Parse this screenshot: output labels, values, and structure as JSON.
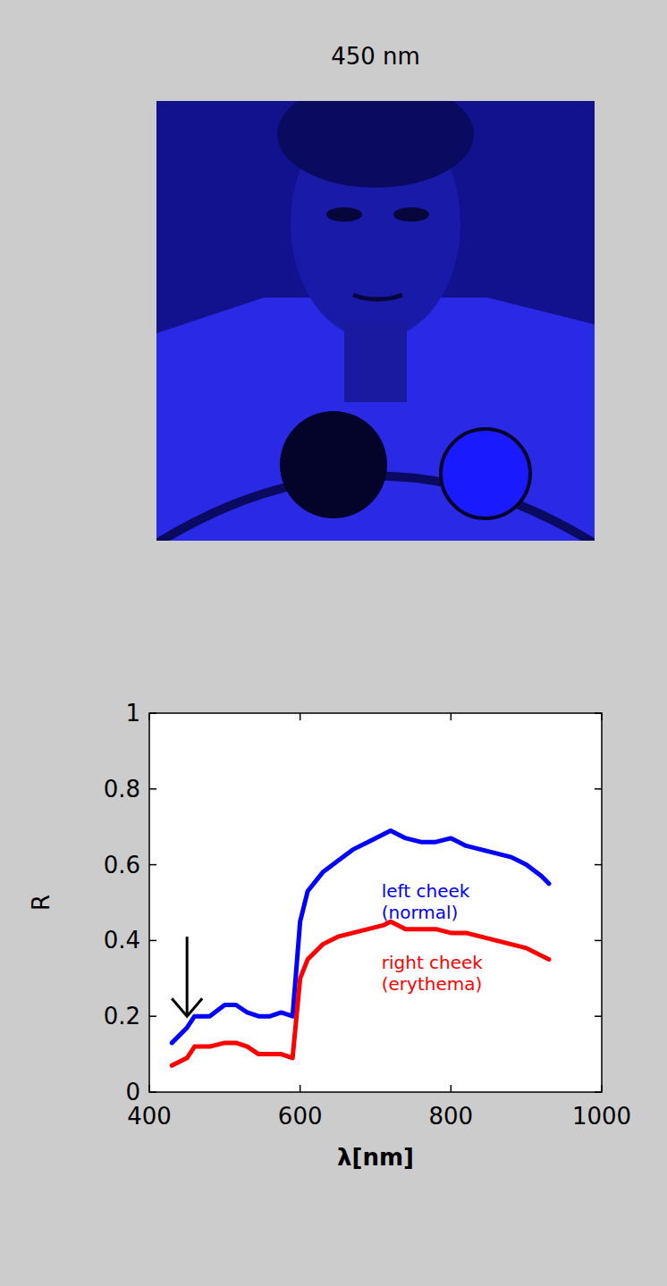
{
  "image": {
    "title": "450 nm"
  },
  "chart_data": {
    "type": "line",
    "xlabel": "λ[nm]",
    "ylabel": "R",
    "x": [
      430,
      450,
      460,
      480,
      500,
      515,
      530,
      545,
      560,
      575,
      590,
      600,
      610,
      630,
      650,
      670,
      690,
      710,
      720,
      740,
      760,
      780,
      800,
      820,
      840,
      860,
      880,
      900,
      920,
      930
    ],
    "series": [
      {
        "name": "left cheek (normal)",
        "color": "#0000ff",
        "values": [
          0.13,
          0.17,
          0.2,
          0.2,
          0.23,
          0.23,
          0.21,
          0.2,
          0.2,
          0.21,
          0.2,
          0.45,
          0.53,
          0.58,
          0.61,
          0.64,
          0.66,
          0.68,
          0.69,
          0.67,
          0.66,
          0.66,
          0.67,
          0.65,
          0.64,
          0.63,
          0.62,
          0.6,
          0.57,
          0.55
        ]
      },
      {
        "name": "right cheek (erythema)",
        "color": "#ff0000",
        "values": [
          0.07,
          0.09,
          0.12,
          0.12,
          0.13,
          0.13,
          0.12,
          0.1,
          0.1,
          0.1,
          0.09,
          0.3,
          0.35,
          0.39,
          0.41,
          0.42,
          0.43,
          0.44,
          0.45,
          0.43,
          0.43,
          0.43,
          0.42,
          0.42,
          0.41,
          0.4,
          0.39,
          0.38,
          0.36,
          0.35
        ]
      }
    ],
    "arrow": {
      "x": 450,
      "from": 0.41,
      "to": 0.2
    },
    "xlim": [
      400,
      1000
    ],
    "ylim": [
      0,
      1
    ],
    "xticks": [
      400,
      600,
      800,
      1000
    ],
    "yticks": [
      0,
      0.2,
      0.4,
      0.6,
      0.8,
      1
    ],
    "grid": false
  }
}
